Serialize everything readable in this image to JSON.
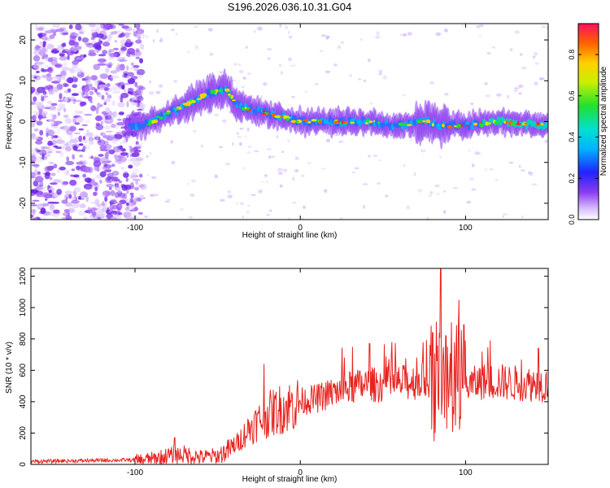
{
  "title": "S196.2026.036.10.31.G04",
  "colors": {
    "snr_line": "#e8231f",
    "spectrogram_ridge": "#00d6c8",
    "background_noise": "#8a3cf0"
  },
  "chart_data": [
    {
      "type": "heatmap",
      "name": "spectrogram",
      "xlabel": "Height of straight line (km)",
      "ylabel": "Frequency (Hz)",
      "xlim": [
        -163,
        150
      ],
      "ylim": [
        -24,
        24
      ],
      "xticks": [
        -100,
        0,
        100
      ],
      "xtick_labels": [
        "-100",
        "0",
        "100"
      ],
      "yticks": [
        20,
        10,
        0,
        -10,
        -20
      ],
      "ytick_labels": [
        "20",
        "10",
        "0",
        "-10",
        "-20"
      ],
      "colorbar": {
        "label": "Normalized spectral amplitude",
        "range": [
          0,
          0.95
        ],
        "ticks": [
          0.0,
          0.2,
          0.4,
          0.6,
          0.8
        ],
        "tick_labels": [
          "0.0",
          "0.2",
          "0.4",
          "0.6",
          "0.8"
        ]
      },
      "ridge": {
        "x": [
          -105,
          -95,
          -85,
          -75,
          -65,
          -55,
          -45,
          -38,
          -30,
          -20,
          -10,
          0,
          20,
          40,
          60,
          75,
          85,
          100,
          120,
          150
        ],
        "freq": [
          -1,
          -1,
          1,
          3,
          5,
          7,
          8,
          4,
          3,
          2,
          1,
          0,
          0,
          0,
          -1,
          0,
          -1,
          -1,
          0,
          -1
        ]
      }
    },
    {
      "type": "line",
      "name": "snr",
      "xlabel": "Height of straight line (km)",
      "ylabel": "SNR (10 * v/v)",
      "xlim": [
        -163,
        150
      ],
      "ylim": [
        0,
        1250
      ],
      "xticks": [
        -100,
        0,
        100
      ],
      "xtick_labels": [
        "-100",
        "0",
        "100"
      ],
      "yticks": [
        0,
        200,
        400,
        600,
        800,
        1000,
        1200
      ],
      "ytick_labels": [
        "0",
        "200",
        "400",
        "600",
        "800",
        "1000",
        "1200"
      ],
      "envelope": {
        "x": [
          -163,
          -100,
          -90,
          -80,
          -70,
          -60,
          -50,
          -40,
          -30,
          -20,
          -10,
          0,
          10,
          20,
          30,
          40,
          50,
          60,
          70,
          80,
          90,
          100,
          110,
          120,
          130,
          150
        ],
        "y": [
          20,
          30,
          40,
          60,
          70,
          50,
          60,
          120,
          250,
          330,
          380,
          410,
          430,
          470,
          500,
          520,
          520,
          530,
          540,
          560,
          520,
          510,
          540,
          540,
          530,
          520
        ]
      },
      "spikes": [
        {
          "x": -76,
          "y": 170
        },
        {
          "x": -22,
          "y": 640
        },
        {
          "x": 42,
          "y": 770
        },
        {
          "x": 80,
          "y": 840
        },
        {
          "x": 85,
          "y": 1250
        },
        {
          "x": 88,
          "y": 820
        },
        {
          "x": 96,
          "y": 1050
        },
        {
          "x": 99,
          "y": 890
        },
        {
          "x": 110,
          "y": 720
        },
        {
          "x": 144,
          "y": 740
        }
      ]
    }
  ]
}
